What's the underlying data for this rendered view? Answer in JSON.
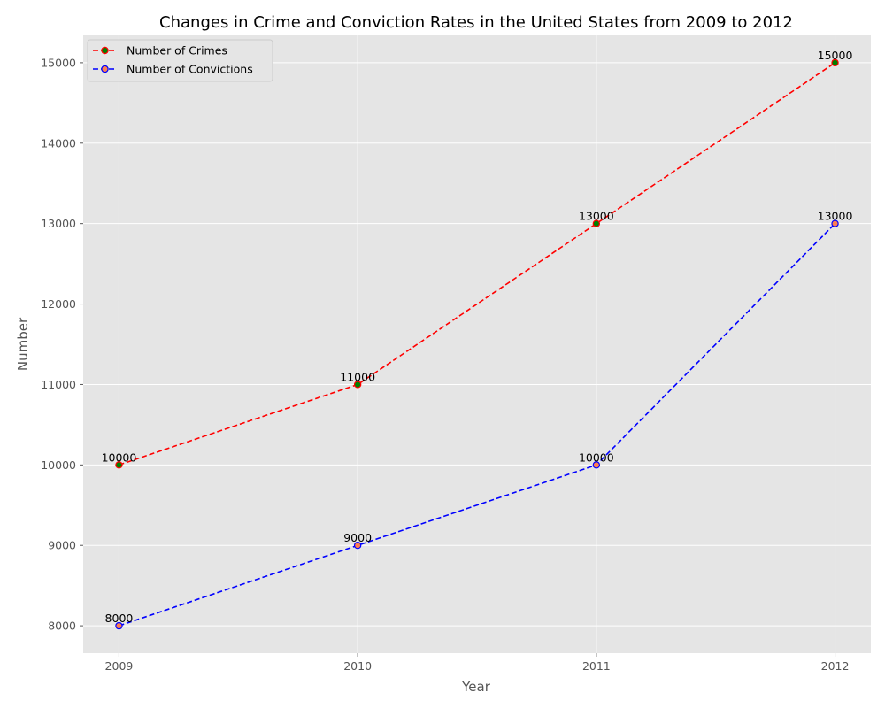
{
  "chart_data": {
    "type": "line",
    "title": "Changes in Crime and Conviction Rates in the United States from 2009 to 2012",
    "xlabel": "Year",
    "ylabel": "Number",
    "categories": [
      "2009",
      "2010",
      "2011",
      "2012"
    ],
    "ylim": [
      7660,
      15340
    ],
    "yticks": [
      8000,
      9000,
      10000,
      11000,
      12000,
      13000,
      14000,
      15000
    ],
    "grid": true,
    "legend_position": "upper-left",
    "background": "#e5e5e5",
    "series": [
      {
        "name": "Number of Crimes",
        "values": [
          10000,
          11000,
          13000,
          15000
        ],
        "line_color": "#ff0000",
        "marker_face": "#008000",
        "marker_edge": "#ff0000",
        "line_style": "dashed"
      },
      {
        "name": "Number of Convictions",
        "values": [
          8000,
          9000,
          10000,
          13000
        ],
        "line_color": "#0000ff",
        "marker_face": "#ff7f50",
        "marker_edge": "#0000ff",
        "line_style": "dashed"
      }
    ]
  }
}
